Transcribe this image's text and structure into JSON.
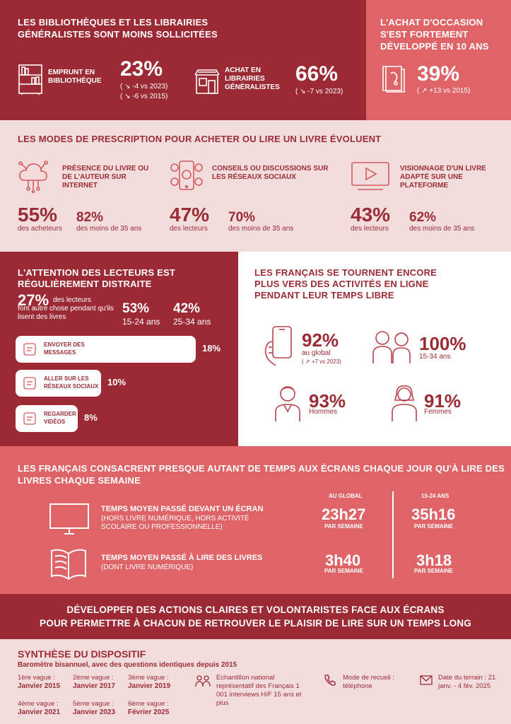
{
  "s1": {
    "title": "LES BIBLIOTHÈQUES ET LES LIBRAIRIES GÉNÉRALISTES SONT MOINS SOLLICITÉES",
    "item1_label": "EMPRUNT EN BIBLIOTHÈQUE",
    "item1_value": "23%",
    "item1_delta1": "( ↘ -4 vs 2023)",
    "item1_delta2": "( ↘ -6 vs 2015)",
    "item2_label": "ACHAT EN LIBRAIRIES GÉNÉRALISTES",
    "item2_value": "66%",
    "item2_delta": "( ↘ -7 vs 2023)"
  },
  "s2": {
    "title": "L'ACHAT D'OCCASION S'EST FORTEMENT DÉVELOPPÉ EN 10 ANS",
    "value": "39%",
    "delta": "( ↗ +13 vs 2015)"
  },
  "s3": {
    "title": "LES MODES DE PRESCRIPTION POUR ACHETER OU LIRE UN LIVRE ÉVOLUENT",
    "cols": [
      {
        "label": "PRÉSENCE DU LIVRE OU DE L'AUTEUR SUR INTERNET",
        "v1": "55%",
        "c1": "des acheteurs",
        "v2": "82%",
        "c2": "des moins de 35 ans"
      },
      {
        "label": "CONSEILS OU DISCUSSIONS SUR LES RÉSEAUX SOCIAUX",
        "v1": "47%",
        "c1": "des lecteurs",
        "v2": "70%",
        "c2": "des moins de 35 ans"
      },
      {
        "label": "VISIONNAGE D'UN LIVRE ADAPTÉ SUR UNE PLATEFORME",
        "v1": "43%",
        "c1": "des lecteurs",
        "v2": "62%",
        "c2": "des moins de 35 ans"
      }
    ]
  },
  "s4": {
    "title": "L'ATTENTION DES LECTEURS EST RÉGULIÈREMENT DISTRAITE",
    "main_value": "27%",
    "main_text1": "des lecteurs",
    "main_text2": "font autre chose pendant qu'ils lisent des livres",
    "age1_value": "53%",
    "age1_label": "15-24 ans",
    "age2_value": "42%",
    "age2_label": "25-34 ans",
    "bars": [
      {
        "label": "ENVOYER DES MESSAGES",
        "value": "18%",
        "fraction": 0.18
      },
      {
        "label": "ALLER SUR LES RÉSEAUX SOCIAUX",
        "value": "10%",
        "fraction": 0.1
      },
      {
        "label": "REGARDER DES VIDÉOS",
        "value": "8%",
        "fraction": 0.08
      }
    ]
  },
  "s5": {
    "title": "LES FRANÇAIS SE TOURNENT ENCORE PLUS VERS DES ACTIVITÉS EN LIGNE PENDANT LEUR TEMPS LIBRE",
    "global_value": "92%",
    "global_label": "au global",
    "global_delta": "( ↗ +7 vs 2023)",
    "young_value": "100%",
    "young_label": "15-34 ans",
    "men_value": "93%",
    "men_label": "Hommes",
    "women_value": "91%",
    "women_label": "Femmes"
  },
  "s6": {
    "title": "LES FRANÇAIS CONSACRENT PRESQUE AUTANT DE TEMPS AUX ÉCRANS CHAQUE JOUR QU'À LIRE DES LIVRES CHAQUE SEMAINE",
    "col1_head": "AU GLOBAL",
    "col2_head": "15-24 ANS",
    "row1_label": "TEMPS MOYEN PASSÉ DEVANT UN ÉCRAN",
    "row1_sub": "(HORS LIVRE NUMÉRIQUE, HORS ACTIVITÉ SCOLAIRE OU PROFESSIONNELLE)",
    "row1_v1": "23h27",
    "row1_v2": "35h16",
    "row2_label": "TEMPS MOYEN PASSÉ À LIRE DES LIVRES",
    "row2_sub": "(DONT LIVRE NUMÉRIQUE)",
    "row2_v1": "3h40",
    "row2_v2": "3h18",
    "unit": "PAR SEMAINE"
  },
  "s7": {
    "line1": "DÉVELOPPER DES ACTIONS CLAIRES ET VOLONTARISTES FACE AUX ÉCRANS",
    "line2": "POUR PERMETTRE À CHACUN DE RETROUVER LE PLAISIR DE LIRE SUR UN TEMPS LONG"
  },
  "s8": {
    "title": "SYNTHÈSE DU DISPOSITIF",
    "subtitle": "Baromètre bisannuel, avec des questions identiques depuis 2015",
    "waves": [
      {
        "k": "1ère vague :",
        "v": "Janvier 2015"
      },
      {
        "k": "2ème vague :",
        "v": "Janvier 2017"
      },
      {
        "k": "3ème vague :",
        "v": "Janvier 2019"
      },
      {
        "k": "4ème vague :",
        "v": "Janvier 2021"
      },
      {
        "k": "5ème vague :",
        "v": "Janvier 2023"
      },
      {
        "k": "6ème vague :",
        "v": "Février 2025"
      }
    ],
    "sample": "Echantillon national représentatif des Français 1 001 interviews H/F 15 ans et plus",
    "mode": "Mode de recueil : téléphone",
    "dates": "Date du terrain : 21 janv. - 4 fév. 2025"
  }
}
